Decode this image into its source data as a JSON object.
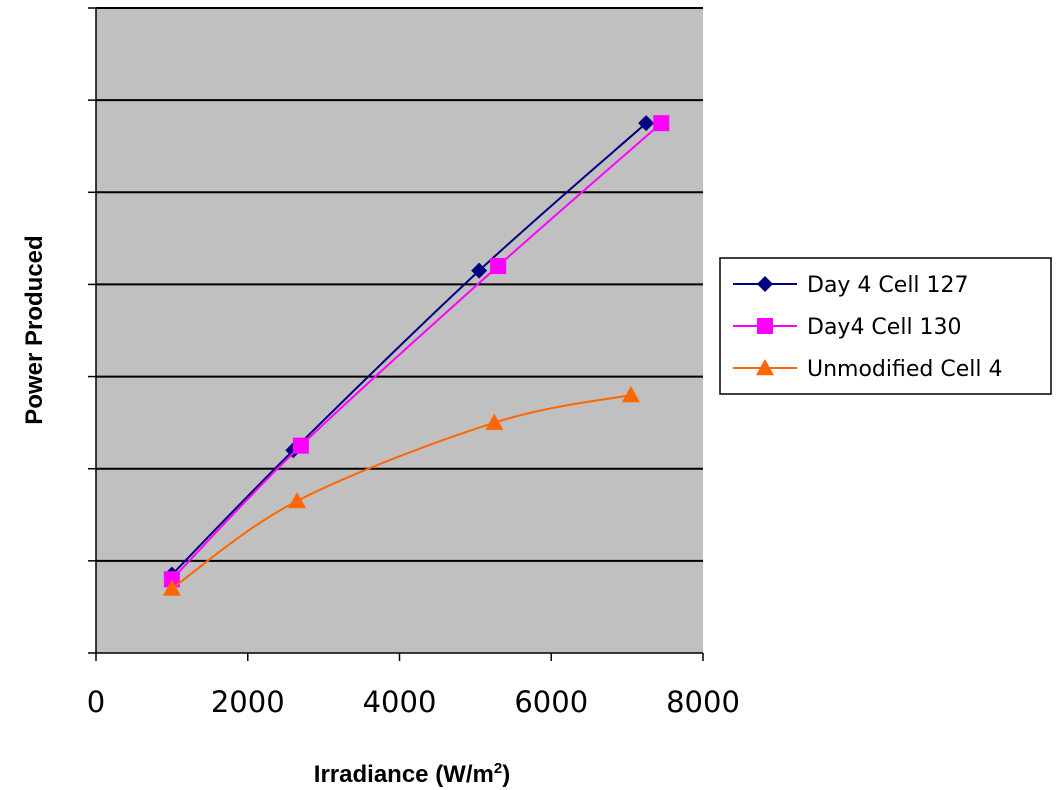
{
  "chart_data": {
    "type": "line",
    "title": "",
    "xlabel": "Irradiance (W/m",
    "xlabel_sup": "2",
    "xlabel_end": ")",
    "ylabel": "Power Produced",
    "xlim": [
      0,
      8000
    ],
    "ylim": [
      0,
      7
    ],
    "x_ticks": [
      "0",
      "2000",
      "4000",
      "6000",
      "8000"
    ],
    "y_tick_count": 8,
    "y_tick_labels_shown": false,
    "grid": "horizontal",
    "background": "#c0c0c0",
    "legend_position": "right",
    "series": [
      {
        "name": "Day 4 Cell 127",
        "color": "#000080",
        "marker": "diamond",
        "x": [
          1000,
          2600,
          5050,
          7250
        ],
        "y": [
          0.85,
          2.2,
          4.15,
          5.75
        ]
      },
      {
        "name": "Day4 Cell 130",
        "color": "#ff00ff",
        "marker": "square",
        "x": [
          1000,
          2700,
          5300,
          7450
        ],
        "y": [
          0.8,
          2.25,
          4.2,
          5.75
        ]
      },
      {
        "name": "Unmodified Cell 4",
        "color": "#ff6600",
        "marker": "triangle",
        "x": [
          1000,
          2650,
          5250,
          7050
        ],
        "y": [
          0.7,
          1.65,
          2.5,
          2.8
        ]
      }
    ]
  }
}
